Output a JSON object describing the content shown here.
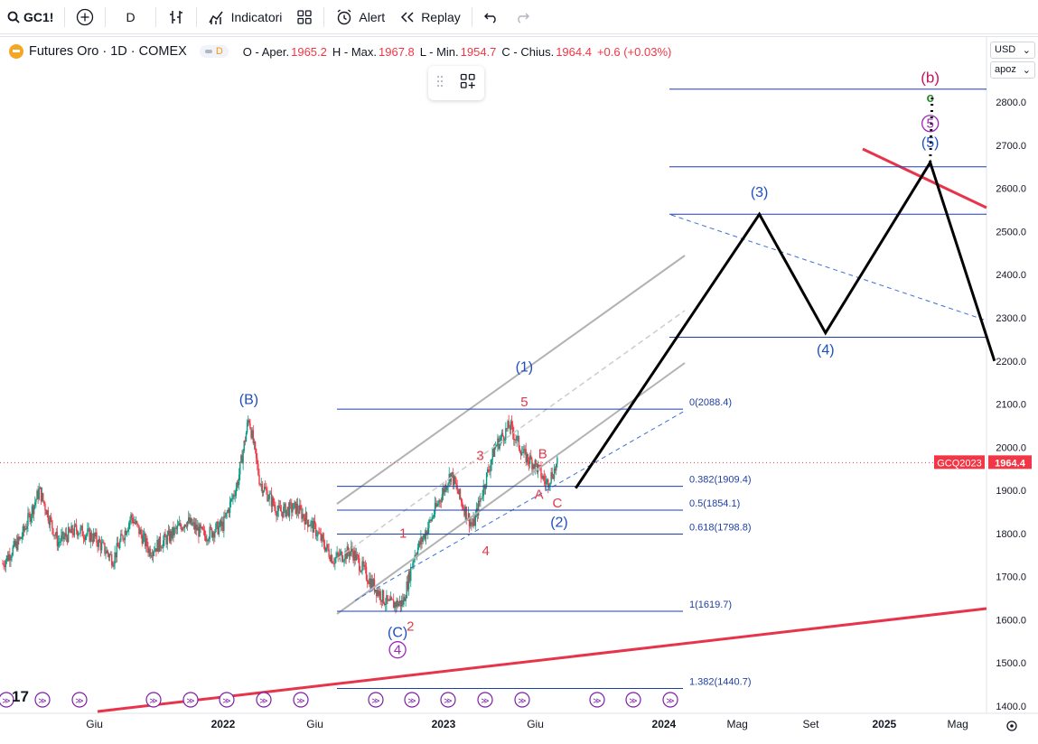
{
  "toolbar": {
    "symbol": "GC1!",
    "interval": "D",
    "indicators_label": "Indicatori",
    "alert_label": "Alert",
    "replay_label": "Replay"
  },
  "legend": {
    "title": "Futures Oro · 1D · COMEX",
    "badge": "D",
    "open_label": "O - Aper.",
    "open": "1965.2",
    "high_label": "H - Max.",
    "high": "1967.8",
    "low_label": "L - Min.",
    "low": "1954.7",
    "close_label": "C - Chius.",
    "close": "1964.4",
    "change": "+0.6 (+0.03%)"
  },
  "price_axis": {
    "currency": "USD",
    "scale_mode": "apoz",
    "current_label": "GCQ2023",
    "current_price": "1964.4"
  },
  "colors": {
    "up": "#089981",
    "down": "#f23645",
    "wave_blue": "#1e4fc2",
    "wave_red": "#e03a4a",
    "wave_purple": "#9c27b0",
    "wave_green": "#2e8b2e",
    "fib_line": "#1f3fa6",
    "trend_red": "#e8344b"
  },
  "chart_data": {
    "type": "candlestick",
    "ylim": [
      1380,
      2860
    ],
    "y_ticks": [
      1400,
      1500,
      1600,
      1700,
      1800,
      1900,
      2000,
      2100,
      2200,
      2300,
      2400,
      2500,
      2600,
      2700,
      2800
    ],
    "x_labels": [
      {
        "label": "Giu",
        "t": 5
      },
      {
        "label": "2022",
        "t": 12
      },
      {
        "label": "Giu",
        "t": 17
      },
      {
        "label": "2023",
        "t": 24
      },
      {
        "label": "Giu",
        "t": 29
      },
      {
        "label": "2024",
        "t": 36
      },
      {
        "label": "Mag",
        "t": 40
      },
      {
        "label": "Set",
        "t": 44
      },
      {
        "label": "2025",
        "t": 48
      },
      {
        "label": "Mag",
        "t": 52
      }
    ],
    "price_path": [
      {
        "t": 0,
        "v": 1730
      },
      {
        "t": 1,
        "v": 1790
      },
      {
        "t": 2,
        "v": 1900
      },
      {
        "t": 3,
        "v": 1780
      },
      {
        "t": 4,
        "v": 1810
      },
      {
        "t": 5,
        "v": 1790
      },
      {
        "t": 6,
        "v": 1740
      },
      {
        "t": 7,
        "v": 1840
      },
      {
        "t": 8,
        "v": 1760
      },
      {
        "t": 9,
        "v": 1790
      },
      {
        "t": 10,
        "v": 1830
      },
      {
        "t": 11,
        "v": 1795
      },
      {
        "t": 12,
        "v": 1820
      },
      {
        "t": 12.8,
        "v": 1920
      },
      {
        "t": 13.4,
        "v": 2070
      },
      {
        "t": 14,
        "v": 1920
      },
      {
        "t": 15,
        "v": 1850
      },
      {
        "t": 16,
        "v": 1860
      },
      {
        "t": 17,
        "v": 1810
      },
      {
        "t": 18,
        "v": 1740
      },
      {
        "t": 19,
        "v": 1760
      },
      {
        "t": 20,
        "v": 1690
      },
      {
        "t": 21,
        "v": 1635
      },
      {
        "t": 21.8,
        "v": 1640
      },
      {
        "t": 22.4,
        "v": 1750
      },
      {
        "t": 23,
        "v": 1800
      },
      {
        "t": 23.6,
        "v": 1860
      },
      {
        "t": 24.4,
        "v": 1940
      },
      {
        "t": 25,
        "v": 1870
      },
      {
        "t": 25.6,
        "v": 1815
      },
      {
        "t": 26.2,
        "v": 1910
      },
      {
        "t": 26.8,
        "v": 2000
      },
      {
        "t": 27.6,
        "v": 2050
      },
      {
        "t": 28.4,
        "v": 1980
      },
      {
        "t": 29,
        "v": 1960
      },
      {
        "t": 29.6,
        "v": 1915
      },
      {
        "t": 30.2,
        "v": 1960
      }
    ],
    "fib_levels": [
      {
        "label": "0(2088.4)",
        "v": 2088.4
      },
      {
        "label": "0.382(1909.4)",
        "v": 1909.4
      },
      {
        "label": "0.5(1854.1)",
        "v": 1854.1
      },
      {
        "label": "0.618(1798.8)",
        "v": 1798.8
      },
      {
        "label": "1(1619.7)",
        "v": 1619.7
      },
      {
        "label": "1.382(1440.7)",
        "v": 1440.7
      }
    ],
    "projection_levels": [
      2830,
      2650,
      2540,
      2255
    ],
    "projection_path": [
      {
        "t": 31.2,
        "v": 1905
      },
      {
        "t": 41.2,
        "v": 2540
      },
      {
        "t": 44.8,
        "v": 2265
      },
      {
        "t": 50.5,
        "v": 2660
      },
      {
        "t": 54,
        "v": 2200
      }
    ],
    "wave_labels": [
      {
        "text": "(B)",
        "t": 13.4,
        "v": 2100,
        "color": "blue"
      },
      {
        "text": "(C)",
        "t": 21.5,
        "v": 1560,
        "color": "blue"
      },
      {
        "text": "4",
        "t": 21.5,
        "v": 1520,
        "color": "purple_circle"
      },
      {
        "text": "2",
        "t": 22.2,
        "v": 1575,
        "color": "red"
      },
      {
        "text": "1",
        "t": 21.8,
        "v": 1790,
        "color": "red"
      },
      {
        "text": "3",
        "t": 26,
        "v": 1970,
        "color": "red"
      },
      {
        "text": "4",
        "t": 26.3,
        "v": 1750,
        "color": "red"
      },
      {
        "text": "5",
        "t": 28.4,
        "v": 2095,
        "color": "red"
      },
      {
        "text": "(1)",
        "t": 28.4,
        "v": 2175,
        "color": "blue"
      },
      {
        "text": "B",
        "t": 29.4,
        "v": 1975,
        "color": "red"
      },
      {
        "text": "A",
        "t": 29.2,
        "v": 1880,
        "color": "red"
      },
      {
        "text": "C",
        "t": 30.2,
        "v": 1860,
        "color": "red"
      },
      {
        "text": "(2)",
        "t": 30.3,
        "v": 1815,
        "color": "blue"
      },
      {
        "text": "(3)",
        "t": 41.2,
        "v": 2580,
        "color": "blue"
      },
      {
        "text": "(4)",
        "t": 44.8,
        "v": 2215,
        "color": "blue"
      },
      {
        "text": "(5)",
        "t": 50.5,
        "v": 2695,
        "color": "blue"
      },
      {
        "text": "5",
        "t": 50.5,
        "v": 2740,
        "color": "purple_circle"
      },
      {
        "text": "c",
        "t": 50.5,
        "v": 2800,
        "color": "green"
      },
      {
        "text": "(b)",
        "t": 50.5,
        "v": 2845,
        "color": "red_dark"
      }
    ]
  }
}
